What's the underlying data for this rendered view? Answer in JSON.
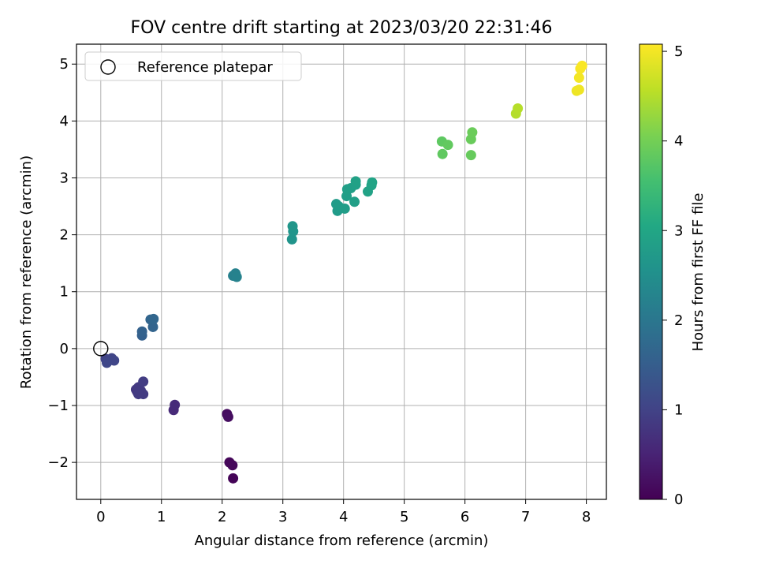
{
  "chart_data": {
    "type": "scatter",
    "title": "FOV centre drift starting at 2023/03/20 22:31:46",
    "xlabel": "Angular distance from reference (arcmin)",
    "ylabel": "Rotation from reference (arcmin)",
    "xlim": [
      -0.4,
      8.33
    ],
    "ylim": [
      -2.65,
      5.35
    ],
    "xticks": [
      "0",
      "1",
      "2",
      "3",
      "4",
      "5",
      "6",
      "7",
      "8"
    ],
    "yticks": [
      "−2",
      "−1",
      "0",
      "1",
      "2",
      "3",
      "4",
      "5"
    ],
    "grid": true,
    "legend": {
      "position": "top-left",
      "entries": [
        "Reference platepar"
      ]
    },
    "colorbar": {
      "label": "Hours from first FF file",
      "range": [
        0,
        5.08
      ],
      "ticks": [
        "0",
        "1",
        "2",
        "3",
        "4",
        "5"
      ],
      "colormap": "viridis"
    },
    "reference_point": {
      "x": 0,
      "y": 0
    },
    "points": [
      {
        "x": 2.18,
        "y": -2.28,
        "t": 0.05
      },
      {
        "x": 2.12,
        "y": -2.0,
        "t": 0.08
      },
      {
        "x": 2.17,
        "y": -2.05,
        "t": 0.1
      },
      {
        "x": 2.08,
        "y": -1.15,
        "t": 0.15
      },
      {
        "x": 2.1,
        "y": -1.2,
        "t": 0.18
      },
      {
        "x": 1.2,
        "y": -1.08,
        "t": 0.6
      },
      {
        "x": 1.22,
        "y": -0.99,
        "t": 0.62
      },
      {
        "x": 0.6,
        "y": -0.76,
        "t": 0.8
      },
      {
        "x": 0.58,
        "y": -0.72,
        "t": 0.82
      },
      {
        "x": 0.62,
        "y": -0.68,
        "t": 0.84
      },
      {
        "x": 0.66,
        "y": -0.74,
        "t": 0.86
      },
      {
        "x": 0.7,
        "y": -0.8,
        "t": 0.87
      },
      {
        "x": 0.62,
        "y": -0.8,
        "t": 0.88
      },
      {
        "x": 0.7,
        "y": -0.58,
        "t": 0.9
      },
      {
        "x": 0.08,
        "y": -0.18,
        "t": 1.0
      },
      {
        "x": 0.12,
        "y": -0.22,
        "t": 1.02
      },
      {
        "x": 0.18,
        "y": -0.17,
        "t": 1.04
      },
      {
        "x": 0.22,
        "y": -0.21,
        "t": 1.06
      },
      {
        "x": 0.1,
        "y": -0.25,
        "t": 1.08
      },
      {
        "x": 0.68,
        "y": 0.23,
        "t": 1.55
      },
      {
        "x": 0.68,
        "y": 0.3,
        "t": 1.58
      },
      {
        "x": 0.86,
        "y": 0.38,
        "t": 1.62
      },
      {
        "x": 0.82,
        "y": 0.51,
        "t": 1.65
      },
      {
        "x": 0.87,
        "y": 0.52,
        "t": 1.67
      },
      {
        "x": 2.18,
        "y": 1.28,
        "t": 2.2
      },
      {
        "x": 2.22,
        "y": 1.32,
        "t": 2.22
      },
      {
        "x": 2.24,
        "y": 1.26,
        "t": 2.24
      },
      {
        "x": 3.15,
        "y": 1.92,
        "t": 2.6
      },
      {
        "x": 3.17,
        "y": 2.06,
        "t": 2.62
      },
      {
        "x": 3.16,
        "y": 2.15,
        "t": 2.64
      },
      {
        "x": 3.88,
        "y": 2.54,
        "t": 2.75
      },
      {
        "x": 3.9,
        "y": 2.42,
        "t": 2.76
      },
      {
        "x": 3.92,
        "y": 2.5,
        "t": 2.78
      },
      {
        "x": 4.02,
        "y": 2.46,
        "t": 2.8
      },
      {
        "x": 4.05,
        "y": 2.68,
        "t": 2.82
      },
      {
        "x": 4.06,
        "y": 2.8,
        "t": 2.84
      },
      {
        "x": 4.12,
        "y": 2.82,
        "t": 2.85
      },
      {
        "x": 4.18,
        "y": 2.58,
        "t": 2.86
      },
      {
        "x": 4.2,
        "y": 2.88,
        "t": 2.88
      },
      {
        "x": 4.2,
        "y": 2.94,
        "t": 2.9
      },
      {
        "x": 4.4,
        "y": 2.76,
        "t": 2.92
      },
      {
        "x": 4.46,
        "y": 2.87,
        "t": 2.94
      },
      {
        "x": 4.47,
        "y": 2.92,
        "t": 2.95
      },
      {
        "x": 5.62,
        "y": 3.64,
        "t": 3.8
      },
      {
        "x": 5.63,
        "y": 3.42,
        "t": 3.82
      },
      {
        "x": 5.72,
        "y": 3.58,
        "t": 3.84
      },
      {
        "x": 6.1,
        "y": 3.4,
        "t": 3.88
      },
      {
        "x": 6.1,
        "y": 3.68,
        "t": 3.9
      },
      {
        "x": 6.12,
        "y": 3.8,
        "t": 3.92
      },
      {
        "x": 6.84,
        "y": 4.13,
        "t": 4.5
      },
      {
        "x": 6.87,
        "y": 4.22,
        "t": 4.52
      },
      {
        "x": 7.84,
        "y": 4.53,
        "t": 4.95
      },
      {
        "x": 7.88,
        "y": 4.55,
        "t": 4.97
      },
      {
        "x": 7.88,
        "y": 4.76,
        "t": 5.0
      },
      {
        "x": 7.9,
        "y": 4.92,
        "t": 5.03
      },
      {
        "x": 7.93,
        "y": 4.97,
        "t": 5.05
      }
    ]
  }
}
